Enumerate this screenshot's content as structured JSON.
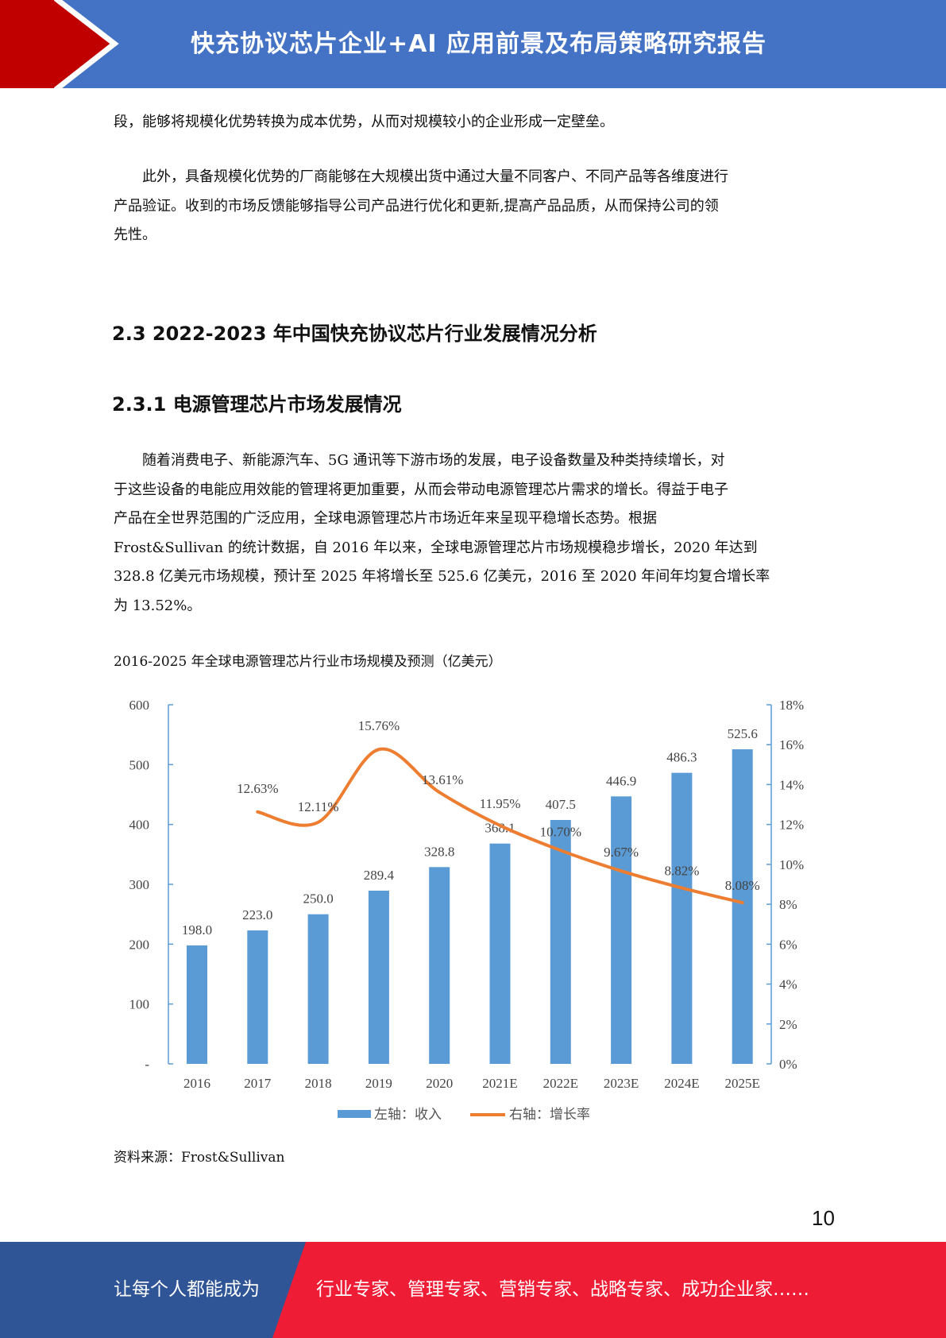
{
  "header": {
    "title": "快充协议芯片企业+AI 应用前景及布局策略研究报告",
    "colors": {
      "bar": "#4472c4",
      "arrow": "#c00000"
    }
  },
  "para1": [
    "段，能够将规模化优势转换为成本优势，从而对规模较小的企业形成一定壁垒。"
  ],
  "para2": [
    "　　此外，具备规模化优势的厂商能够在大规模出货中通过大量不同客户、不同产品等各维度进行",
    "产品验证。收到的市场反馈能够指导公司产品进行优化和更新,提高产品品质，从而保持公司的领",
    "先性。"
  ],
  "heading1": "2.3 2022-2023 年中国快充协议芯片行业发展情况分析",
  "heading2": "2.3.1 电源管理芯片市场发展情况",
  "para3": [
    "　　随着消费电子、新能源汽车、5G 通讯等下游市场的发展，电子设备数量及种类持续增长，对",
    "于这些设备的电能应用效能的管理将更加重要，从而会带动电源管理芯片需求的增长。得益于电子",
    "产品在全世界范围的广泛应用，全球电源管理芯片市场近年来呈现平稳增长态势。根据",
    "Frost&Sullivan 的统计数据，自 2016 年以来，全球电源管理芯片市场规模稳步增长，2020 年达到",
    "328.8 亿美元市场规模，预计至 2025 年将增长至 525.6 亿美元，2016 至 2020 年间年均复合增长率",
    "为 13.52%。"
  ],
  "caption": "2016-2025 年全球电源管理芯片行业市场规模及预测（亿美元）",
  "chart_data": {
    "type": "bar+line",
    "title": "2016-2025 年全球电源管理芯片行业市场规模及预测（亿美元）",
    "categories": [
      "2016",
      "2017",
      "2018",
      "2019",
      "2020",
      "2021E",
      "2022E",
      "2023E",
      "2024E",
      "2025E"
    ],
    "series": [
      {
        "name": "左轴：收入",
        "type": "bar",
        "axis": "left",
        "color": "#5b9bd5",
        "values": [
          198.0,
          223.0,
          250.0,
          289.4,
          328.8,
          368.1,
          407.5,
          446.9,
          486.3,
          525.6
        ],
        "labels": [
          "198.0",
          "223.0",
          "250.0",
          "289.4",
          "328.8",
          "368.1",
          "407.5",
          "446.9",
          "486.3",
          "525.6"
        ]
      },
      {
        "name": "右轴：增长率",
        "type": "line",
        "axis": "right",
        "color": "#ed7d31",
        "values": [
          null,
          12.63,
          12.11,
          15.76,
          13.61,
          11.95,
          10.7,
          9.67,
          8.82,
          8.08
        ],
        "labels": [
          null,
          "12.63%",
          "12.11%",
          "15.76%",
          "13.61%",
          "11.95%",
          "10.70%",
          "9.67%",
          "8.82%",
          "8.08%"
        ]
      }
    ],
    "left_axis": {
      "ylim": [
        0,
        600
      ],
      "ticks": [
        "-",
        "100",
        "200",
        "300",
        "400",
        "500",
        "600"
      ]
    },
    "right_axis": {
      "ylim": [
        0,
        18
      ],
      "ticks": [
        "0%",
        "2%",
        "4%",
        "6%",
        "8%",
        "10%",
        "12%",
        "14%",
        "16%",
        "18%"
      ]
    },
    "legend": "bottom",
    "grid": false
  },
  "source": "资料来源：Frost&Sullivan",
  "page_number": "10",
  "footer": {
    "left": "让每个人都能成为",
    "right": "行业专家、管理专家、营销专家、战略专家、成功企业家……",
    "colors": {
      "left": "#2f5597",
      "right": "#ee1c35"
    }
  }
}
